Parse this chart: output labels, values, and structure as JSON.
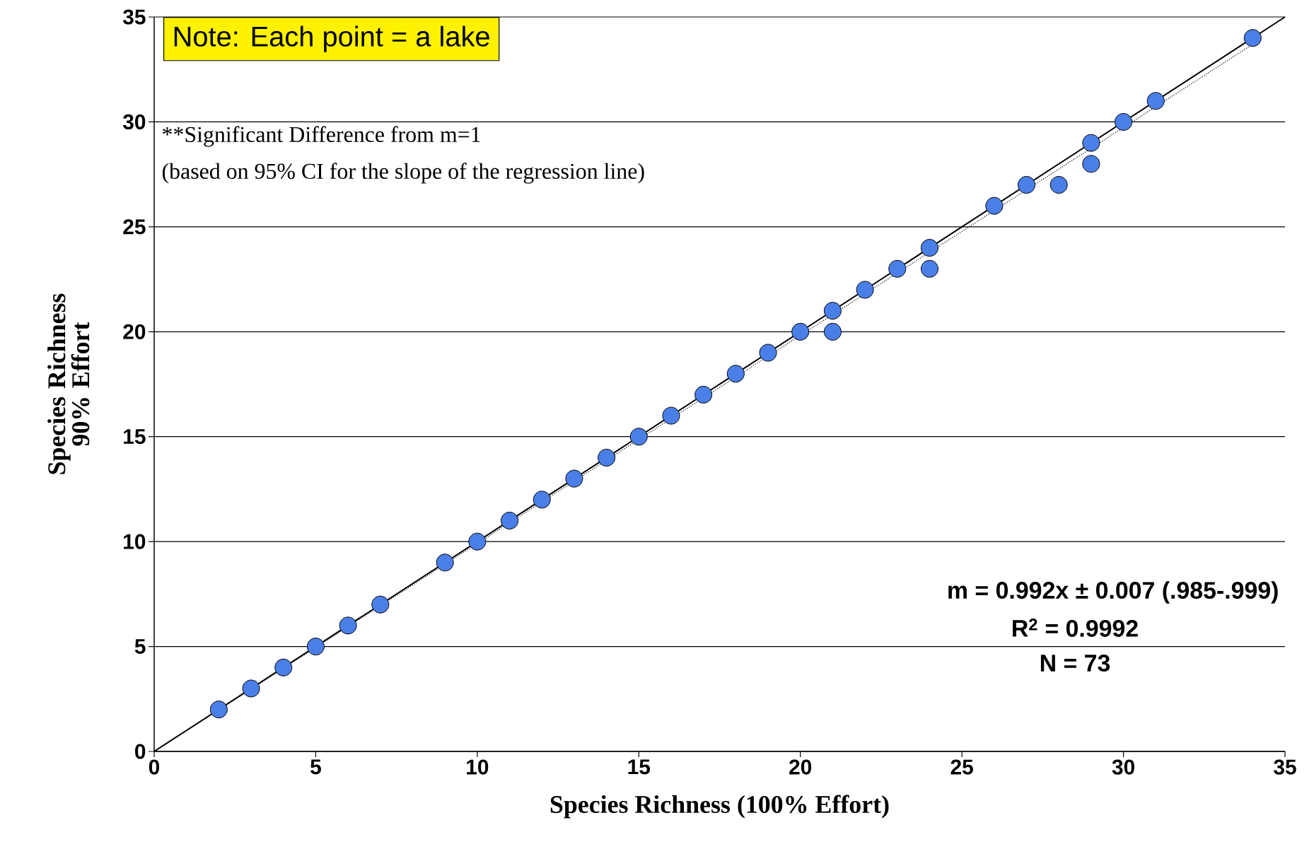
{
  "chart_data": {
    "type": "scatter",
    "xlabel": "Species Richness (100% Effort)",
    "ylabel": "Species Richness 90% Effort",
    "annotations": [
      "Note:  Each point = a lake",
      "**Significant Difference from m=1",
      "(based on 95% CI for the slope of the regression line)",
      "m = 0.992x ± 0.007 (.985-.999)",
      "R$^{2}$ = 0.9992",
      "N = 73"
    ],
    "xlim": [
      0,
      35
    ],
    "ylim": [
      0,
      35
    ],
    "xticks": [
      0,
      5,
      10,
      15,
      20,
      25,
      30,
      35
    ],
    "yticks": [
      0,
      5,
      10,
      15,
      20,
      25,
      30,
      35
    ],
    "grid": "y",
    "series": [
      {
        "type": "line",
        "color": "#000000",
        "line_style": "solid",
        "marker": "none",
        "x": [
          0,
          35
        ],
        "values": [
          0,
          35
        ]
      },
      {
        "type": "line",
        "color": "#000000",
        "line_style": "dotted",
        "marker": "none",
        "x": [
          0,
          34
        ],
        "values": [
          0,
          33.7
        ]
      },
      {
        "type": "scatter",
        "marker": "circle",
        "color": "#4a7fe8",
        "x": [
          2,
          3,
          4,
          5,
          6,
          7,
          9,
          10,
          11,
          12,
          13,
          14,
          15,
          16,
          17,
          18,
          19,
          20,
          21,
          21,
          22,
          23,
          24,
          24,
          26,
          27,
          28,
          29,
          29,
          30,
          31,
          34
        ],
        "values": [
          2,
          3,
          4,
          5,
          6,
          7,
          9,
          10,
          11,
          12,
          13,
          14,
          15,
          16,
          17,
          18,
          19,
          20,
          21,
          20,
          22,
          23,
          24,
          23,
          26,
          27,
          27,
          29,
          28,
          30,
          31,
          34
        ]
      }
    ]
  }
}
